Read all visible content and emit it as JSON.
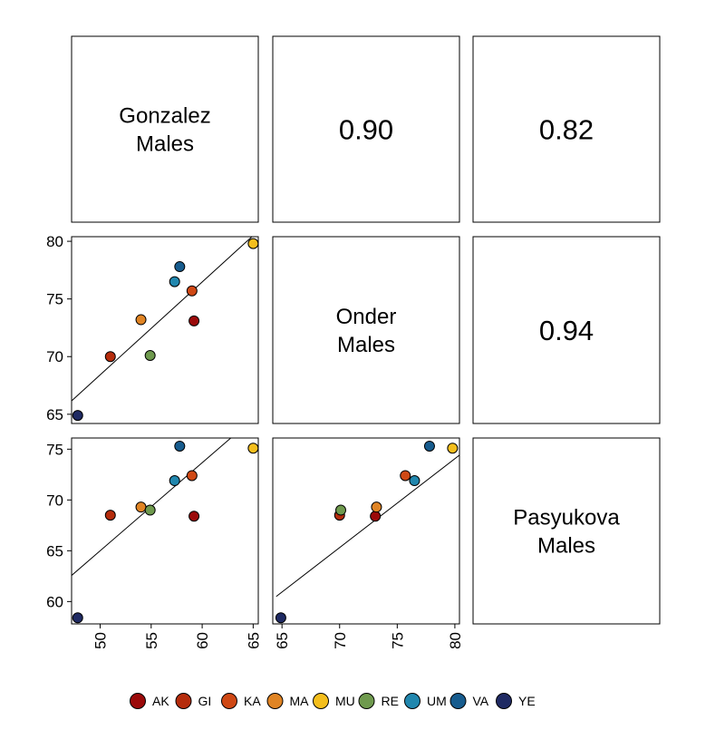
{
  "chart_data": {
    "type": "scatter-matrix",
    "variables": [
      {
        "id": "gonzalez",
        "label_lines": [
          "Gonzalez",
          "Males"
        ]
      },
      {
        "id": "onder",
        "label_lines": [
          "Onder",
          "Males"
        ]
      },
      {
        "id": "pasyukova",
        "label_lines": [
          "Pasyukova",
          "Males"
        ]
      }
    ],
    "correlations": [
      {
        "row": 0,
        "col": 1,
        "text": "0.90"
      },
      {
        "row": 0,
        "col": 2,
        "text": "0.82"
      },
      {
        "row": 1,
        "col": 2,
        "text": "0.94"
      }
    ],
    "groups": [
      {
        "name": "AK",
        "color": "#9B0A0A",
        "gonzalez": 59.2,
        "onder": 73.1,
        "pasyukova": 68.4
      },
      {
        "name": "GI",
        "color": "#B52C0C",
        "gonzalez": 51.0,
        "onder": 70.0,
        "pasyukova": 68.5
      },
      {
        "name": "KA",
        "color": "#CF4814",
        "gonzalez": 59.0,
        "onder": 75.7,
        "pasyukova": 72.4
      },
      {
        "name": "MA",
        "color": "#E08424",
        "gonzalez": 54.0,
        "onder": 73.2,
        "pasyukova": 69.3
      },
      {
        "name": "MU",
        "color": "#F4BE1C",
        "gonzalez": 65.0,
        "onder": 79.8,
        "pasyukova": 75.1
      },
      {
        "name": "RE",
        "color": "#6F9A4E",
        "gonzalez": 54.9,
        "onder": 70.1,
        "pasyukova": 69.0
      },
      {
        "name": "UM",
        "color": "#2187AE",
        "gonzalez": 57.3,
        "onder": 76.5,
        "pasyukova": 71.9
      },
      {
        "name": "VA",
        "color": "#175C8E",
        "gonzalez": 57.8,
        "onder": 77.8,
        "pasyukova": 75.3
      },
      {
        "name": "YE",
        "color": "#1F2A63",
        "gonzalez": 47.8,
        "onder": 64.9,
        "pasyukova": 58.4
      }
    ],
    "fits": [
      {
        "x": "gonzalez",
        "y": "onder",
        "points": [
          [
            47.0,
            66.0
          ],
          [
            65.0,
            80.5
          ]
        ]
      },
      {
        "x": "gonzalez",
        "y": "pasyukova",
        "points": [
          [
            47.0,
            62.4
          ],
          [
            65.0,
            78.0
          ]
        ]
      },
      {
        "x": "onder",
        "y": "pasyukova",
        "points": [
          [
            64.5,
            60.5
          ],
          [
            80.5,
            74.5
          ]
        ]
      }
    ],
    "axes": {
      "gonzalez": {
        "range": [
          47.2,
          65.5
        ],
        "ticks": [
          50,
          55,
          60,
          65
        ]
      },
      "onder": {
        "range": [
          64.2,
          80.4
        ],
        "ticks": [
          65,
          70,
          75,
          80
        ]
      },
      "pasyukova": {
        "range": [
          57.8,
          76.1
        ],
        "ticks": [
          60,
          65,
          70,
          75
        ]
      }
    },
    "legend": {
      "position": "bottom"
    }
  }
}
